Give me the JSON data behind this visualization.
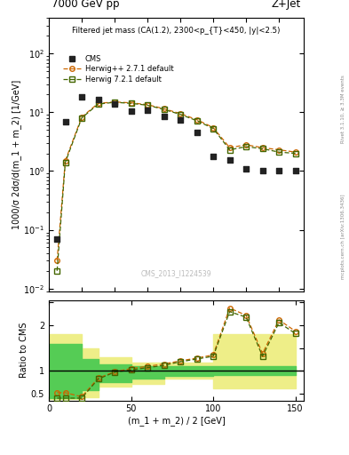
{
  "title_left": "7000 GeV pp",
  "title_right": "Z+Jet",
  "plot_title": "Filtered jet mass (CA(1.2), 2300<p_{T}<450, |y|<2.5)",
  "ylabel_main": "1000/σ 2dσ/d(m_1 + m_2) [1/GeV]",
  "ylabel_ratio": "Ratio to CMS",
  "xlabel": "(m_1 + m_2) / 2 [GeV]",
  "watermark": "CMS_2013_I1224539",
  "right_label": "mcplots.cern.ch [arXiv:1306.3436]",
  "rivet_label": "Rivet 3.1.10, ≥ 3.3M events",
  "cms_x": [
    5,
    10,
    20,
    30,
    40,
    50,
    60,
    70,
    80,
    90,
    100,
    110,
    120,
    130,
    140,
    150
  ],
  "cms_y": [
    0.07,
    6.8,
    18.0,
    16.5,
    14.0,
    10.5,
    11.0,
    8.5,
    7.5,
    4.5,
    1.8,
    1.55,
    1.1,
    1.0,
    1.0,
    1.0
  ],
  "hpp_x": [
    5,
    10,
    20,
    30,
    40,
    50,
    60,
    70,
    80,
    90,
    100,
    110,
    120,
    130,
    140,
    150
  ],
  "hpp_y": [
    0.03,
    1.5,
    8.3,
    14.2,
    15.0,
    14.5,
    13.5,
    11.5,
    9.5,
    7.5,
    5.5,
    2.5,
    2.8,
    2.5,
    2.3,
    2.1
  ],
  "h721_x": [
    5,
    10,
    20,
    30,
    40,
    50,
    60,
    70,
    80,
    90,
    100,
    110,
    120,
    130,
    140,
    150
  ],
  "h721_y": [
    0.02,
    1.4,
    8.0,
    13.8,
    14.8,
    14.2,
    13.2,
    11.2,
    9.2,
    7.2,
    5.3,
    2.3,
    2.6,
    2.4,
    2.1,
    2.0
  ],
  "ratio_hpp_x": [
    5,
    10,
    20,
    30,
    40,
    50,
    60,
    70,
    80,
    90,
    100,
    110,
    120,
    130,
    140,
    150
  ],
  "ratio_hpp_y": [
    0.52,
    0.52,
    0.43,
    0.84,
    0.98,
    1.05,
    1.1,
    1.15,
    1.22,
    1.28,
    1.35,
    2.38,
    2.22,
    1.38,
    2.12,
    1.87
  ],
  "ratio_h721_x": [
    5,
    10,
    20,
    30,
    40,
    50,
    60,
    70,
    80,
    90,
    100,
    110,
    120,
    130,
    140,
    150
  ],
  "ratio_h721_y": [
    0.4,
    0.4,
    0.4,
    0.82,
    0.97,
    1.02,
    1.07,
    1.12,
    1.2,
    1.26,
    1.32,
    2.3,
    2.18,
    1.32,
    2.06,
    1.82
  ],
  "band_edges": [
    0,
    5,
    10,
    20,
    30,
    50,
    70,
    100,
    150
  ],
  "green_lo": [
    0.4,
    0.4,
    0.4,
    0.58,
    0.75,
    0.82,
    0.88,
    0.9,
    0.9
  ],
  "green_hi": [
    1.6,
    1.6,
    1.6,
    1.25,
    1.15,
    1.1,
    1.1,
    1.1,
    1.65
  ],
  "yellow_lo": [
    0.38,
    0.38,
    0.38,
    0.42,
    0.65,
    0.72,
    0.82,
    0.62,
    0.62
  ],
  "yellow_hi": [
    1.8,
    1.8,
    1.8,
    1.5,
    1.3,
    1.18,
    1.18,
    1.8,
    1.8
  ],
  "ylim_main": [
    0.009,
    400
  ],
  "ylim_ratio": [
    0.35,
    2.55
  ],
  "xlim": [
    0,
    155
  ],
  "cms_color": "#222222",
  "hpp_color": "#cc6600",
  "h721_color": "#446600",
  "green_color": "#55cc55",
  "yellow_color": "#eeee88",
  "legend_entries": [
    "CMS",
    "Herwig++ 2.7.1 default",
    "Herwig 7.2.1 default"
  ]
}
